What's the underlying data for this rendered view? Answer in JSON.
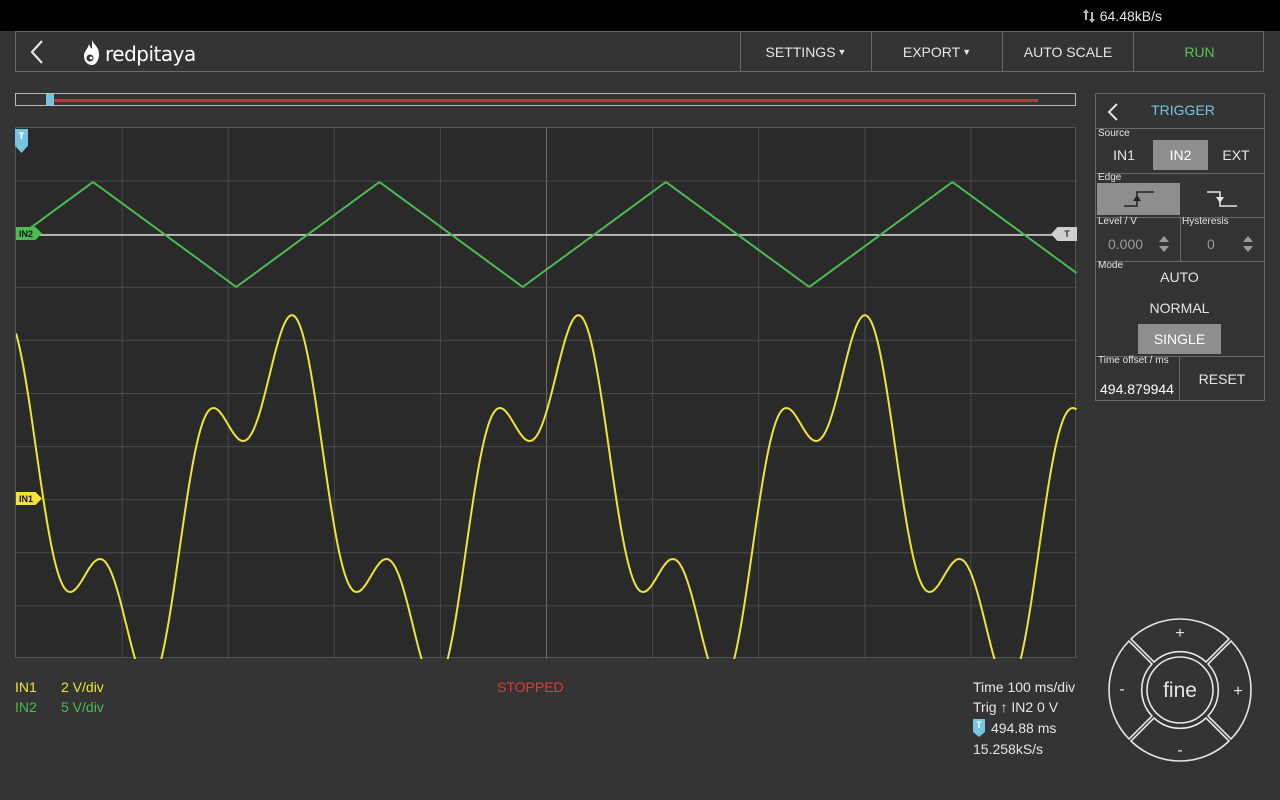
{
  "status_bar": {
    "data_rate": "64.48kB/s",
    "icon": "transfer-arrows-icon"
  },
  "header": {
    "back_icon": "chevron-left-icon",
    "logo_text": "redpitaya",
    "settings_label": "SETTINGS",
    "export_label": "EXPORT",
    "autoscale_label": "AUTO SCALE",
    "run_label": "RUN",
    "run_color": "#58c35a"
  },
  "plot": {
    "markers": {
      "in2": "IN2",
      "in1": "IN1",
      "trigger_time": "T",
      "trigger_level": "T"
    }
  },
  "chart_data": {
    "type": "line",
    "grid": true,
    "x_divisions": 10,
    "y_divisions": 10,
    "series": [
      {
        "name": "IN1",
        "color": "#f1e338",
        "waveform": "distorted periodic",
        "period_div": 2.7
      },
      {
        "name": "IN2",
        "color": "#4cbb51",
        "waveform": "triangle",
        "period_div": 2.7
      }
    ]
  },
  "channels": [
    {
      "name": "IN1",
      "scale": "2 V/div",
      "color": "#f1e338"
    },
    {
      "name": "IN2",
      "scale": "5 V/div",
      "color": "#4cbb51"
    }
  ],
  "acq_status": "STOPPED",
  "readout": {
    "time": "Time 100 ms/div",
    "trig": "Trig ↑ IN2 0 V",
    "offset": "494.88 ms",
    "rate": "15.258kS/s"
  },
  "trigger_panel": {
    "title": "TRIGGER",
    "source_label": "Source",
    "sources": [
      "IN1",
      "IN2",
      "EXT"
    ],
    "source_selected": "IN2",
    "edge_label": "Edge",
    "edge_selected": "rising",
    "level_label": "Level / V",
    "level_value": "0.000",
    "hysteresis_label": "Hysteresis",
    "hysteresis_value": "0",
    "mode_label": "Mode",
    "modes": [
      "AUTO",
      "NORMAL",
      "SINGLE"
    ],
    "mode_selected": "SINGLE",
    "time_offset_label": "Time offset / ms",
    "time_offset_value": "494.879944",
    "reset_label": "RESET"
  },
  "jog": {
    "center_label": "fine",
    "plus": "+",
    "minus": "-"
  }
}
